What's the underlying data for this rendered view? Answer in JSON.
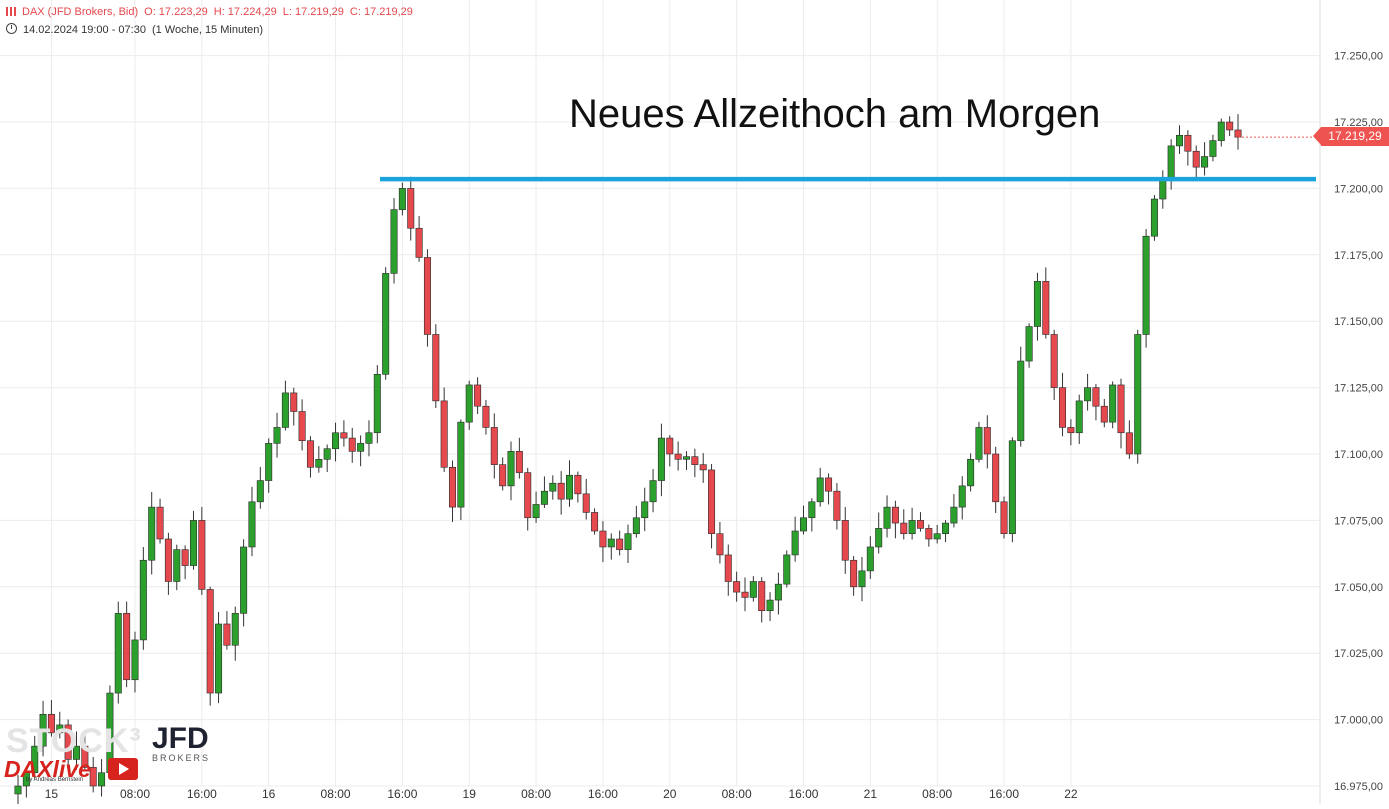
{
  "header": {
    "instrument": "DAX (JFD Brokers, Bid)",
    "open": "O: 17.223,29",
    "high": "H: 17.224,29",
    "low": "L: 17.219,29",
    "close": "C: 17.219,29",
    "range": "14.02.2024 19:00 - 07:30",
    "interval": "(1 Woche, 15 Minuten)"
  },
  "annotation": "Neues Allzeithoch am Morgen",
  "last_price_label": "17.219,29",
  "logo": {
    "stock": "STOCK³",
    "jfd": "JFD",
    "brokers": "BROKERS",
    "dax": "DAXlive",
    "by": "by Andreas Bernstein"
  },
  "colors": {
    "up": "#2ca02c",
    "down": "#e5484d",
    "resistance": "#1aa3dc",
    "grid": "#ececec",
    "last_price": "#ef5350"
  },
  "chart_data": {
    "type": "candlestick",
    "title": "",
    "y_ticks": [
      "16.975,00",
      "17.000,00",
      "17.025,00",
      "17.050,00",
      "17.075,00",
      "17.100,00",
      "17.125,00",
      "17.150,00",
      "17.175,00",
      "17.200,00",
      "17.225,00",
      "17.250,00"
    ],
    "ylim": [
      16970,
      17262
    ],
    "x_ticks": [
      "15",
      "08:00",
      "16:00",
      "16",
      "08:00",
      "16:00",
      "19",
      "08:00",
      "16:00",
      "20",
      "08:00",
      "16:00",
      "21",
      "08:00",
      "16:00",
      "22"
    ],
    "x_tick_index": [
      4,
      14,
      22,
      30,
      38,
      46,
      54,
      62,
      70,
      78,
      86,
      94,
      102,
      110,
      118,
      126
    ],
    "resistance_level": 17203.5,
    "last_price": 17219.29,
    "grid": true,
    "close": [
      16975,
      16980,
      16990,
      17002,
      16995,
      16998,
      16985,
      16990,
      16982,
      16975,
      16980,
      17010,
      17040,
      17015,
      17030,
      17060,
      17080,
      17068,
      17052,
      17064,
      17058,
      17075,
      17049,
      17010,
      17036,
      17028,
      17040,
      17065,
      17082,
      17090,
      17104,
      17110,
      17123,
      17116,
      17105,
      17095,
      17098,
      17102,
      17108,
      17106,
      17101,
      17104,
      17108,
      17130,
      17168,
      17192,
      17200,
      17185,
      17174,
      17145,
      17120,
      17095,
      17080,
      17112,
      17126,
      17118,
      17110,
      17096,
      17088,
      17101,
      17093,
      17076,
      17081,
      17086,
      17089,
      17083,
      17092,
      17085,
      17078,
      17071,
      17065,
      17068,
      17064,
      17070,
      17076,
      17082,
      17090,
      17106,
      17100,
      17098,
      17099,
      17096,
      17094,
      17070,
      17062,
      17052,
      17048,
      17046,
      17052,
      17041,
      17045,
      17051,
      17062,
      17071,
      17076,
      17082,
      17091,
      17086,
      17075,
      17060,
      17050,
      17056,
      17065,
      17072,
      17080,
      17074,
      17070,
      17075,
      17072,
      17068,
      17070,
      17074,
      17080,
      17088,
      17098,
      17110,
      17100,
      17082,
      17070,
      17105,
      17135,
      17148,
      17165,
      17145,
      17125,
      17110,
      17108,
      17120,
      17125,
      17118,
      17112,
      17126,
      17108,
      17100,
      17145,
      17182,
      17196,
      17204,
      17216,
      17220,
      17214,
      17208,
      17212,
      17218,
      17225,
      17222,
      17219.29
    ]
  }
}
